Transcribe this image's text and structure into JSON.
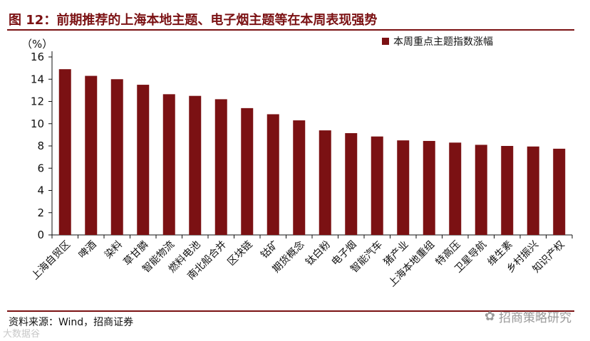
{
  "header": {
    "title": "图 12：前期推荐的上海本地主题、电子烟主题等在本周表现强势"
  },
  "footer": {
    "source": "资料来源：Wind，招商证券",
    "watermark": "招商策略研究",
    "ghost_text": "大数据谷"
  },
  "colors": {
    "bar": "#7b1113",
    "accent": "#7b1113",
    "axis": "#111111"
  },
  "chart_data": {
    "type": "bar",
    "unit_label": "（%）",
    "categories": [
      "上海自贸区",
      "啤酒",
      "染料",
      "草甘膦",
      "智能物流",
      "燃料电池",
      "南北船合并",
      "区块链",
      "钴矿",
      "期货概念",
      "钛白粉",
      "电子烟",
      "智能汽车",
      "猪产业",
      "上海本地重组",
      "特高压",
      "卫星导航",
      "维生素",
      "乡村振兴",
      "知识产权"
    ],
    "series": [
      {
        "name": "本周重点主题指数涨幅",
        "values": [
          14.9,
          14.3,
          14.0,
          13.5,
          12.65,
          12.5,
          12.2,
          11.4,
          10.85,
          10.3,
          9.4,
          9.15,
          8.85,
          8.5,
          8.45,
          8.3,
          8.1,
          8.0,
          7.95,
          7.75
        ]
      }
    ],
    "yticks": [
      "0",
      "2",
      "4",
      "6",
      "8",
      "10",
      "12",
      "14",
      "16"
    ],
    "ylim": [
      0,
      16
    ],
    "grid": false,
    "legend_position": "top-right"
  }
}
